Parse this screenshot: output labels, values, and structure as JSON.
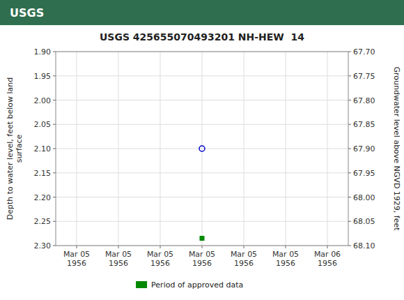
{
  "chart_data": {
    "type": "line",
    "title": "USGS 425655070493201 NH-HEW  14",
    "annotations": [
      "USGS"
    ],
    "y_label": "Depth to water level, feet below land\nsurface",
    "y2_label": "Groundwater level above NGVD 1929, feet",
    "categories": [
      "Mar 05\n1956",
      "Mar 05\n1956",
      "Mar 05\n1956",
      "Mar 05\n1956",
      "Mar 05\n1956",
      "Mar 05\n1956",
      "Mar 06\n1956"
    ],
    "series": [
      {
        "color": "#0000cc",
        "marker": "circle",
        "line_style": "none",
        "values": [
          null,
          null,
          null,
          2.1,
          null,
          null,
          null
        ]
      },
      {
        "name": "Period of approved data",
        "color": "#008800",
        "marker": "square",
        "line_style": "none",
        "values": [
          null,
          null,
          null,
          2.285,
          null,
          null,
          null
        ]
      }
    ],
    "ylim": [
      2.3,
      1.9
    ],
    "yticks": [
      {
        "value": 1.9,
        "label": "1.90"
      },
      {
        "value": 1.95,
        "label": "1.95"
      },
      {
        "value": 2.0,
        "label": "2.00"
      },
      {
        "value": 2.05,
        "label": "2.05"
      },
      {
        "value": 2.1,
        "label": "2.10"
      },
      {
        "value": 2.15,
        "label": "2.15"
      },
      {
        "value": 2.2,
        "label": "2.20"
      },
      {
        "value": 2.25,
        "label": "2.25"
      },
      {
        "value": 2.3,
        "label": "2.30"
      }
    ],
    "y2lim": [
      68.1,
      67.7
    ],
    "y2ticks": [
      {
        "value": 67.7,
        "label": "67.70"
      },
      {
        "value": 67.75,
        "label": "67.75"
      },
      {
        "value": 67.8,
        "label": "67.80"
      },
      {
        "value": 67.85,
        "label": "67.85"
      },
      {
        "value": 67.9,
        "label": "67.90"
      },
      {
        "value": 67.95,
        "label": "67.95"
      },
      {
        "value": 68.0,
        "label": "68.00"
      },
      {
        "value": 68.05,
        "label": "68.05"
      },
      {
        "value": 68.1,
        "label": "68.10"
      }
    ],
    "grid": true,
    "legend": "bottom"
  }
}
